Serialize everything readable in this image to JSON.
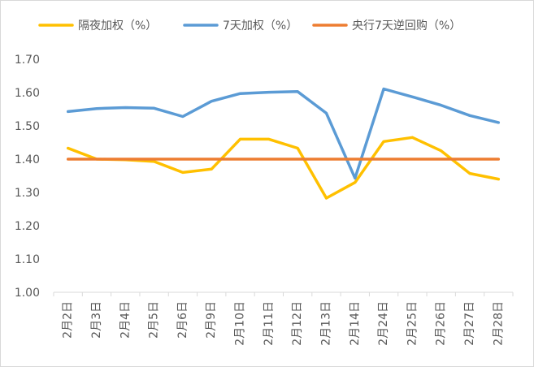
{
  "chart_data": {
    "type": "line",
    "title": "",
    "xlabel": "",
    "ylabel": "",
    "ylim": [
      1.0,
      1.7
    ],
    "yticks": [
      "1.00",
      "1.10",
      "1.20",
      "1.30",
      "1.40",
      "1.50",
      "1.60",
      "1.70"
    ],
    "grid": false,
    "legend_position": "top",
    "categories": [
      "2月2日",
      "2月3日",
      "2月4日",
      "2月5日",
      "2月6日",
      "2月9日",
      "2月10日",
      "2月11日",
      "2月12日",
      "2月13日",
      "2月14日",
      "2月24日",
      "2月25日",
      "2月26日",
      "2月27日",
      "2月28日"
    ],
    "series": [
      {
        "name": "隔夜加权（%）",
        "color": "#ffc000",
        "values": [
          1.433,
          1.4,
          1.398,
          1.393,
          1.36,
          1.37,
          1.46,
          1.46,
          1.433,
          1.283,
          1.33,
          1.453,
          1.465,
          1.425,
          1.357,
          1.34
        ]
      },
      {
        "name": "7天加权（%）",
        "color": "#5b9bd5",
        "values": [
          1.543,
          1.552,
          1.555,
          1.553,
          1.528,
          1.574,
          1.597,
          1.601,
          1.603,
          1.538,
          1.343,
          1.611,
          1.587,
          1.562,
          1.531,
          1.51
        ]
      },
      {
        "name": "央行7天逆回购（%）",
        "color": "#ed7d31",
        "values": [
          1.4,
          1.4,
          1.4,
          1.4,
          1.4,
          1.4,
          1.4,
          1.4,
          1.4,
          1.4,
          1.4,
          1.4,
          1.4,
          1.4,
          1.4,
          1.4
        ]
      }
    ]
  }
}
